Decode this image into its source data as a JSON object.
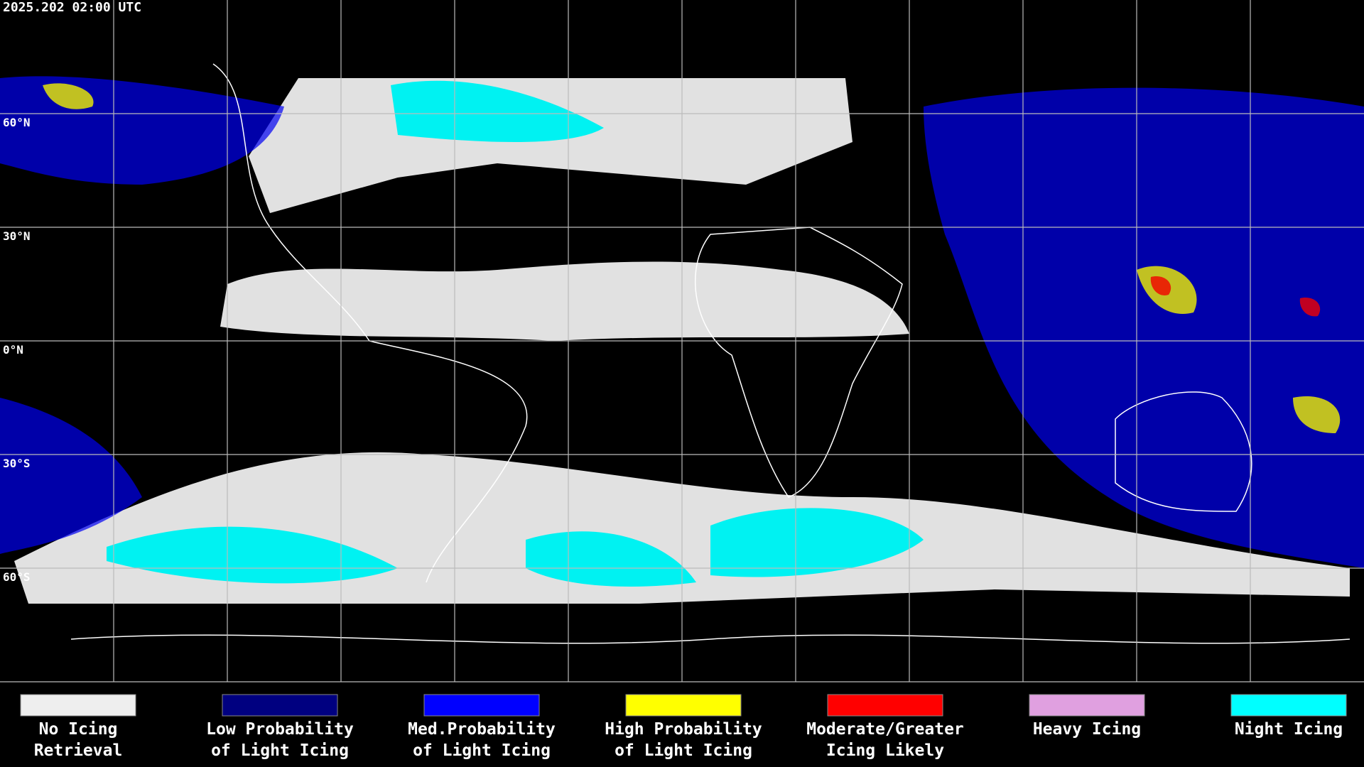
{
  "timestamp": "2025.202 02:00 UTC",
  "latitude_labels": [
    "60°N",
    "30°N",
    "0°N",
    "30°S",
    "60°S"
  ],
  "legend": [
    {
      "lines": [
        "No Icing",
        "Retrieval"
      ],
      "color": "#eeeeee"
    },
    {
      "lines": [
        "Low Probability",
        "of Light Icing"
      ],
      "color": "#000080"
    },
    {
      "lines": [
        "Med.Probability",
        "of Light Icing"
      ],
      "color": "#0000ff"
    },
    {
      "lines": [
        "High Probability",
        "of Light Icing"
      ],
      "color": "#ffff00"
    },
    {
      "lines": [
        "Moderate/Greater",
        "Icing Likely"
      ],
      "color": "#ff0000"
    },
    {
      "lines": [
        "Heavy Icing"
      ],
      "color": "#e0a0e0"
    },
    {
      "lines": [
        "Night Icing"
      ],
      "color": "#00ffff"
    }
  ]
}
